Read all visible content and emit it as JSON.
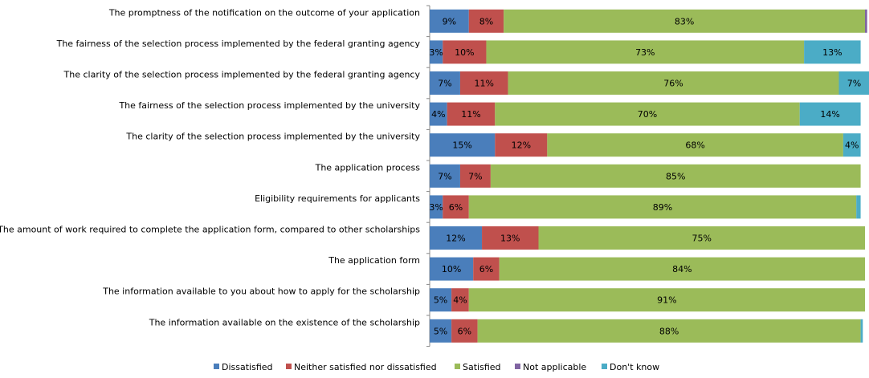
{
  "chart_data": {
    "type": "bar",
    "orientation": "horizontal",
    "stacked": "percent",
    "title": "",
    "xlabel": "",
    "ylabel": "",
    "xlim": [
      0,
      100
    ],
    "grid": false,
    "legend_position": "bottom",
    "categories": [
      "The promptness of the notification on the outcome of your application",
      "The fairness of the selection process implemented by the federal granting agency",
      "The clarity of the selection process implemented by the federal granting agency",
      "The fairness of the selection process implemented by the university",
      "The clarity of the selection process implemented by the university",
      "The application process",
      "Eligibility requirements for applicants",
      "The amount of work required to complete the application form, compared to other scholarships",
      "The application form",
      "The information available to you about how to apply for the scholarship",
      "The information available on the existence of the scholarship"
    ],
    "series": [
      {
        "name": "Dissatisfied",
        "color": "#4a7ebb",
        "values": [
          9,
          3,
          7,
          4,
          15,
          7,
          3,
          12,
          10,
          5,
          5
        ]
      },
      {
        "name": "Neither satisfied nor dissatisfied",
        "color": "#c0504d",
        "values": [
          8,
          10,
          11,
          11,
          12,
          7,
          6,
          13,
          6,
          4,
          6
        ]
      },
      {
        "name": "Satisfied",
        "color": "#9bbb59",
        "values": [
          83,
          73,
          76,
          70,
          68,
          85,
          89,
          75,
          84,
          91,
          88
        ]
      },
      {
        "name": "Not applicable",
        "color": "#8064a2",
        "values": [
          0.5,
          0,
          0,
          0,
          0,
          0,
          0,
          0,
          0,
          0,
          0
        ]
      },
      {
        "name": "Don't know",
        "color": "#4bacc6",
        "values": [
          0,
          13,
          7,
          14,
          4,
          0,
          1,
          0,
          0,
          0,
          0.5
        ]
      }
    ]
  }
}
